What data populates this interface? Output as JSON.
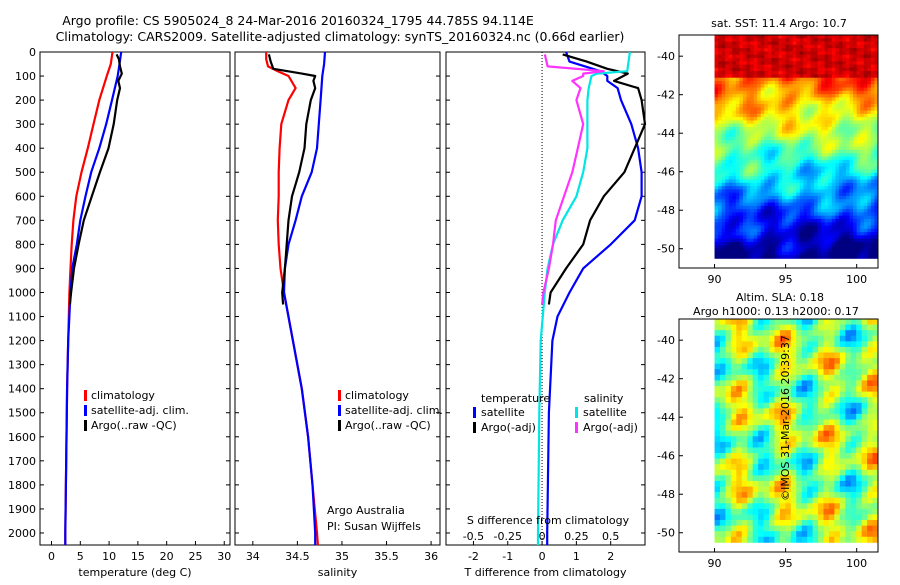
{
  "header": {
    "line1": "Argo profile: CS 5905024_8 24-Mar-2016 20160324_1795 44.785S 94.114E",
    "line2": "Climatology: CARS2009. Satellite-adjusted climatology: synTS_20160324.nc (0.66d earlier)"
  },
  "depth_ticks": [
    "0",
    "100",
    "200",
    "300",
    "400",
    "500",
    "600",
    "700",
    "800",
    "900",
    "1000",
    "1100",
    "1200",
    "1300",
    "1400",
    "1500",
    "1600",
    "1700",
    "1800",
    "1900",
    "2000"
  ],
  "colors": {
    "climatology": "#ff0000",
    "satellite": "#0000ff",
    "argo": "#000000",
    "sal_satellite": "#00e5e5",
    "sal_argo": "#ff33ff"
  },
  "chart_data": [
    {
      "type": "line",
      "xlabel": "temperature (deg C)",
      "ylabel": "",
      "xlim": [
        -2,
        31
      ],
      "ylim": [
        2050,
        0
      ],
      "xticks": [
        "0",
        "5",
        "10",
        "15",
        "20",
        "25",
        "30"
      ],
      "xtick_values": [
        0,
        5,
        10,
        15,
        20,
        25,
        30
      ],
      "legend": [
        "climatology",
        "satellite-adj. clim.",
        "Argo(..raw -QC)"
      ],
      "series": [
        {
          "name": "climatology",
          "depth": [
            0,
            50,
            100,
            200,
            300,
            400,
            500,
            600,
            700,
            800,
            900,
            1000,
            1200,
            1400,
            1600,
            1800,
            2000,
            2050
          ],
          "values": [
            10.6,
            10.3,
            9.6,
            8.3,
            7.3,
            6.3,
            5.2,
            4.3,
            3.8,
            3.5,
            3.3,
            3.1,
            2.9,
            2.7,
            2.6,
            2.5,
            2.4,
            2.4
          ]
        },
        {
          "name": "satellite-adj. clim.",
          "depth": [
            0,
            50,
            100,
            200,
            300,
            400,
            500,
            600,
            700,
            800,
            900,
            1000,
            1200,
            1400,
            1600,
            1800,
            2000,
            2050
          ],
          "values": [
            12.1,
            11.8,
            11.5,
            10.5,
            9.5,
            8.3,
            6.9,
            5.9,
            5.0,
            4.4,
            3.6,
            3.3,
            2.9,
            2.7,
            2.6,
            2.5,
            2.4,
            2.4
          ]
        },
        {
          "name": "Argo(..raw -QC)",
          "depth": [
            10,
            30,
            60,
            90,
            120,
            150,
            200,
            300,
            400,
            500,
            600,
            700,
            800,
            900,
            1000,
            1050
          ],
          "values": [
            11.3,
            11.7,
            11.9,
            12.2,
            11.6,
            11.9,
            11.4,
            10.8,
            9.9,
            8.4,
            7.0,
            5.6,
            4.7,
            3.9,
            3.4,
            3.2
          ]
        }
      ]
    },
    {
      "type": "line",
      "xlabel": "salinity",
      "ylabel": "",
      "xlim": [
        33.8,
        36.1
      ],
      "ylim": [
        2050,
        0
      ],
      "xticks": [
        "34",
        "34.5",
        "35",
        "35.5",
        "36"
      ],
      "xtick_values": [
        34,
        34.5,
        35,
        35.5,
        36
      ],
      "legend": [
        "climatology",
        "satellite-adj. clim.",
        "Argo(..raw -QC)"
      ],
      "annotations": [
        "Argo Australia",
        "PI: Susan Wijffels"
      ],
      "series": [
        {
          "name": "climatology",
          "depth": [
            0,
            30,
            60,
            80,
            100,
            150,
            200,
            300,
            400,
            500,
            600,
            700,
            800,
            900,
            1000,
            1200,
            1400,
            1600,
            1800,
            2000,
            2050
          ],
          "values": [
            34.15,
            34.15,
            34.17,
            34.28,
            34.4,
            34.48,
            34.4,
            34.32,
            34.3,
            34.29,
            34.29,
            34.28,
            34.29,
            34.31,
            34.35,
            34.45,
            34.55,
            34.62,
            34.67,
            34.72,
            34.73
          ]
        },
        {
          "name": "satellite-adj. clim.",
          "depth": [
            0,
            50,
            100,
            200,
            300,
            400,
            500,
            600,
            700,
            800,
            900,
            1000,
            1200,
            1400,
            1600,
            1800,
            2000,
            2050
          ],
          "values": [
            34.81,
            34.8,
            34.78,
            34.76,
            34.74,
            34.72,
            34.66,
            34.55,
            34.48,
            34.4,
            34.36,
            34.35,
            34.45,
            34.55,
            34.62,
            34.67,
            34.7,
            34.7
          ]
        },
        {
          "name": "Argo(..raw -QC)",
          "depth": [
            10,
            40,
            70,
            90,
            100,
            120,
            150,
            200,
            300,
            400,
            500,
            600,
            700,
            800,
            900,
            1000,
            1050
          ],
          "values": [
            34.18,
            34.2,
            34.23,
            34.55,
            34.7,
            34.68,
            34.7,
            34.65,
            34.6,
            34.58,
            34.52,
            34.44,
            34.4,
            34.38,
            34.36,
            34.33,
            34.34
          ]
        }
      ]
    },
    {
      "type": "line",
      "xlabel": "T difference from climatology",
      "ylabel": "",
      "xlim": [
        -2.8,
        3.0
      ],
      "ylim": [
        2050,
        0
      ],
      "xticks": [
        "-2",
        "-1",
        "0",
        "1",
        "2"
      ],
      "xtick_values": [
        -2,
        -1,
        0,
        1,
        2
      ],
      "s_label": "S difference from climatology",
      "s_ticks": [
        "-0.5",
        "-0.25",
        "0",
        "0.25",
        "0.5"
      ],
      "s_tick_values": [
        -0.5,
        -0.25,
        0,
        0.25,
        0.5
      ],
      "s_scale": 4,
      "legend_headers": [
        "temperature",
        "salinity"
      ],
      "legend": [
        "satellite",
        "Argo(-adj)",
        "satellite",
        "Argo(-adj)"
      ],
      "series": [
        {
          "name": "satellite",
          "quantity": "temperature",
          "depth": [
            0,
            40,
            80,
            100,
            120,
            150,
            200,
            300,
            400,
            500,
            600,
            700,
            800,
            900,
            1000,
            1100,
            1200,
            1500,
            2000,
            2050
          ],
          "values": [
            0.7,
            0.8,
            1.7,
            1.9,
            1.9,
            2.2,
            2.3,
            2.6,
            2.8,
            2.9,
            2.9,
            2.7,
            2.0,
            1.2,
            0.8,
            0.45,
            0.3,
            0.2,
            0.15,
            0.15
          ]
        },
        {
          "name": "Argo(-adj)",
          "quantity": "temperature",
          "depth": [
            10,
            40,
            70,
            90,
            120,
            150,
            200,
            300,
            400,
            500,
            600,
            700,
            800,
            900,
            1000,
            1050
          ],
          "values": [
            0.6,
            1.3,
            1.9,
            2.5,
            2.1,
            2.8,
            2.9,
            3.0,
            2.7,
            2.4,
            1.8,
            1.4,
            1.2,
            0.7,
            0.25,
            0.2
          ]
        },
        {
          "name": "satellite",
          "quantity": "salinity",
          "depth": [
            0,
            80,
            90,
            100,
            150,
            200,
            300,
            400,
            500,
            600,
            700,
            800,
            900,
            1000,
            1200,
            1500,
            2000,
            2050
          ],
          "values": [
            0.64,
            0.62,
            0.4,
            0.36,
            0.34,
            0.33,
            0.33,
            0.33,
            0.3,
            0.25,
            0.15,
            0.08,
            0.04,
            0.02,
            -0.01,
            -0.02,
            -0.03,
            -0.03
          ]
        },
        {
          "name": "Argo(-adj)",
          "quantity": "salinity",
          "depth": [
            10,
            60,
            80,
            90,
            100,
            120,
            150,
            200,
            300,
            400,
            500,
            600,
            700,
            800,
            900,
            1000,
            1050
          ],
          "values": [
            0.02,
            0.04,
            0.45,
            0.3,
            0.3,
            0.22,
            0.28,
            0.25,
            0.3,
            0.26,
            0.22,
            0.16,
            0.1,
            0.08,
            0.05,
            0.01,
            0.0
          ]
        }
      ]
    },
    {
      "type": "heatmap",
      "title": "sat. SST: 11.4 Argo: 10.7",
      "xlim": [
        87.5,
        101.5
      ],
      "ylim": [
        -51,
        -38.9
      ],
      "xticks": [
        "90",
        "95",
        "100"
      ],
      "xtick_values": [
        90,
        95,
        100
      ],
      "yticks": [
        "-40",
        "-42",
        "-44",
        "-46",
        "-48",
        "-50"
      ],
      "ytick_values": [
        -40,
        -42,
        -44,
        -46,
        -48,
        -50
      ],
      "data_x_range": [
        90,
        101.5
      ],
      "data_y_range": [
        -50.5,
        -38.9
      ]
    },
    {
      "type": "heatmap",
      "title_line1": "Altim. SLA: 0.18",
      "title_line2": "Argo h1000: 0.13 h2000: 0.17",
      "xlim": [
        87.5,
        101.5
      ],
      "ylim": [
        -51,
        -38.9
      ],
      "xticks": [
        "90",
        "95",
        "100"
      ],
      "xtick_values": [
        90,
        95,
        100
      ],
      "yticks": [
        "-40",
        "-42",
        "-44",
        "-46",
        "-48",
        "-50"
      ],
      "ytick_values": [
        -40,
        -42,
        -44,
        -46,
        -48,
        -50
      ],
      "data_x_range": [
        90,
        101.5
      ],
      "data_y_range": [
        -50.5,
        -38.9
      ]
    }
  ],
  "watermark": "©IMOS 31-Mar-2016 20:39:37"
}
